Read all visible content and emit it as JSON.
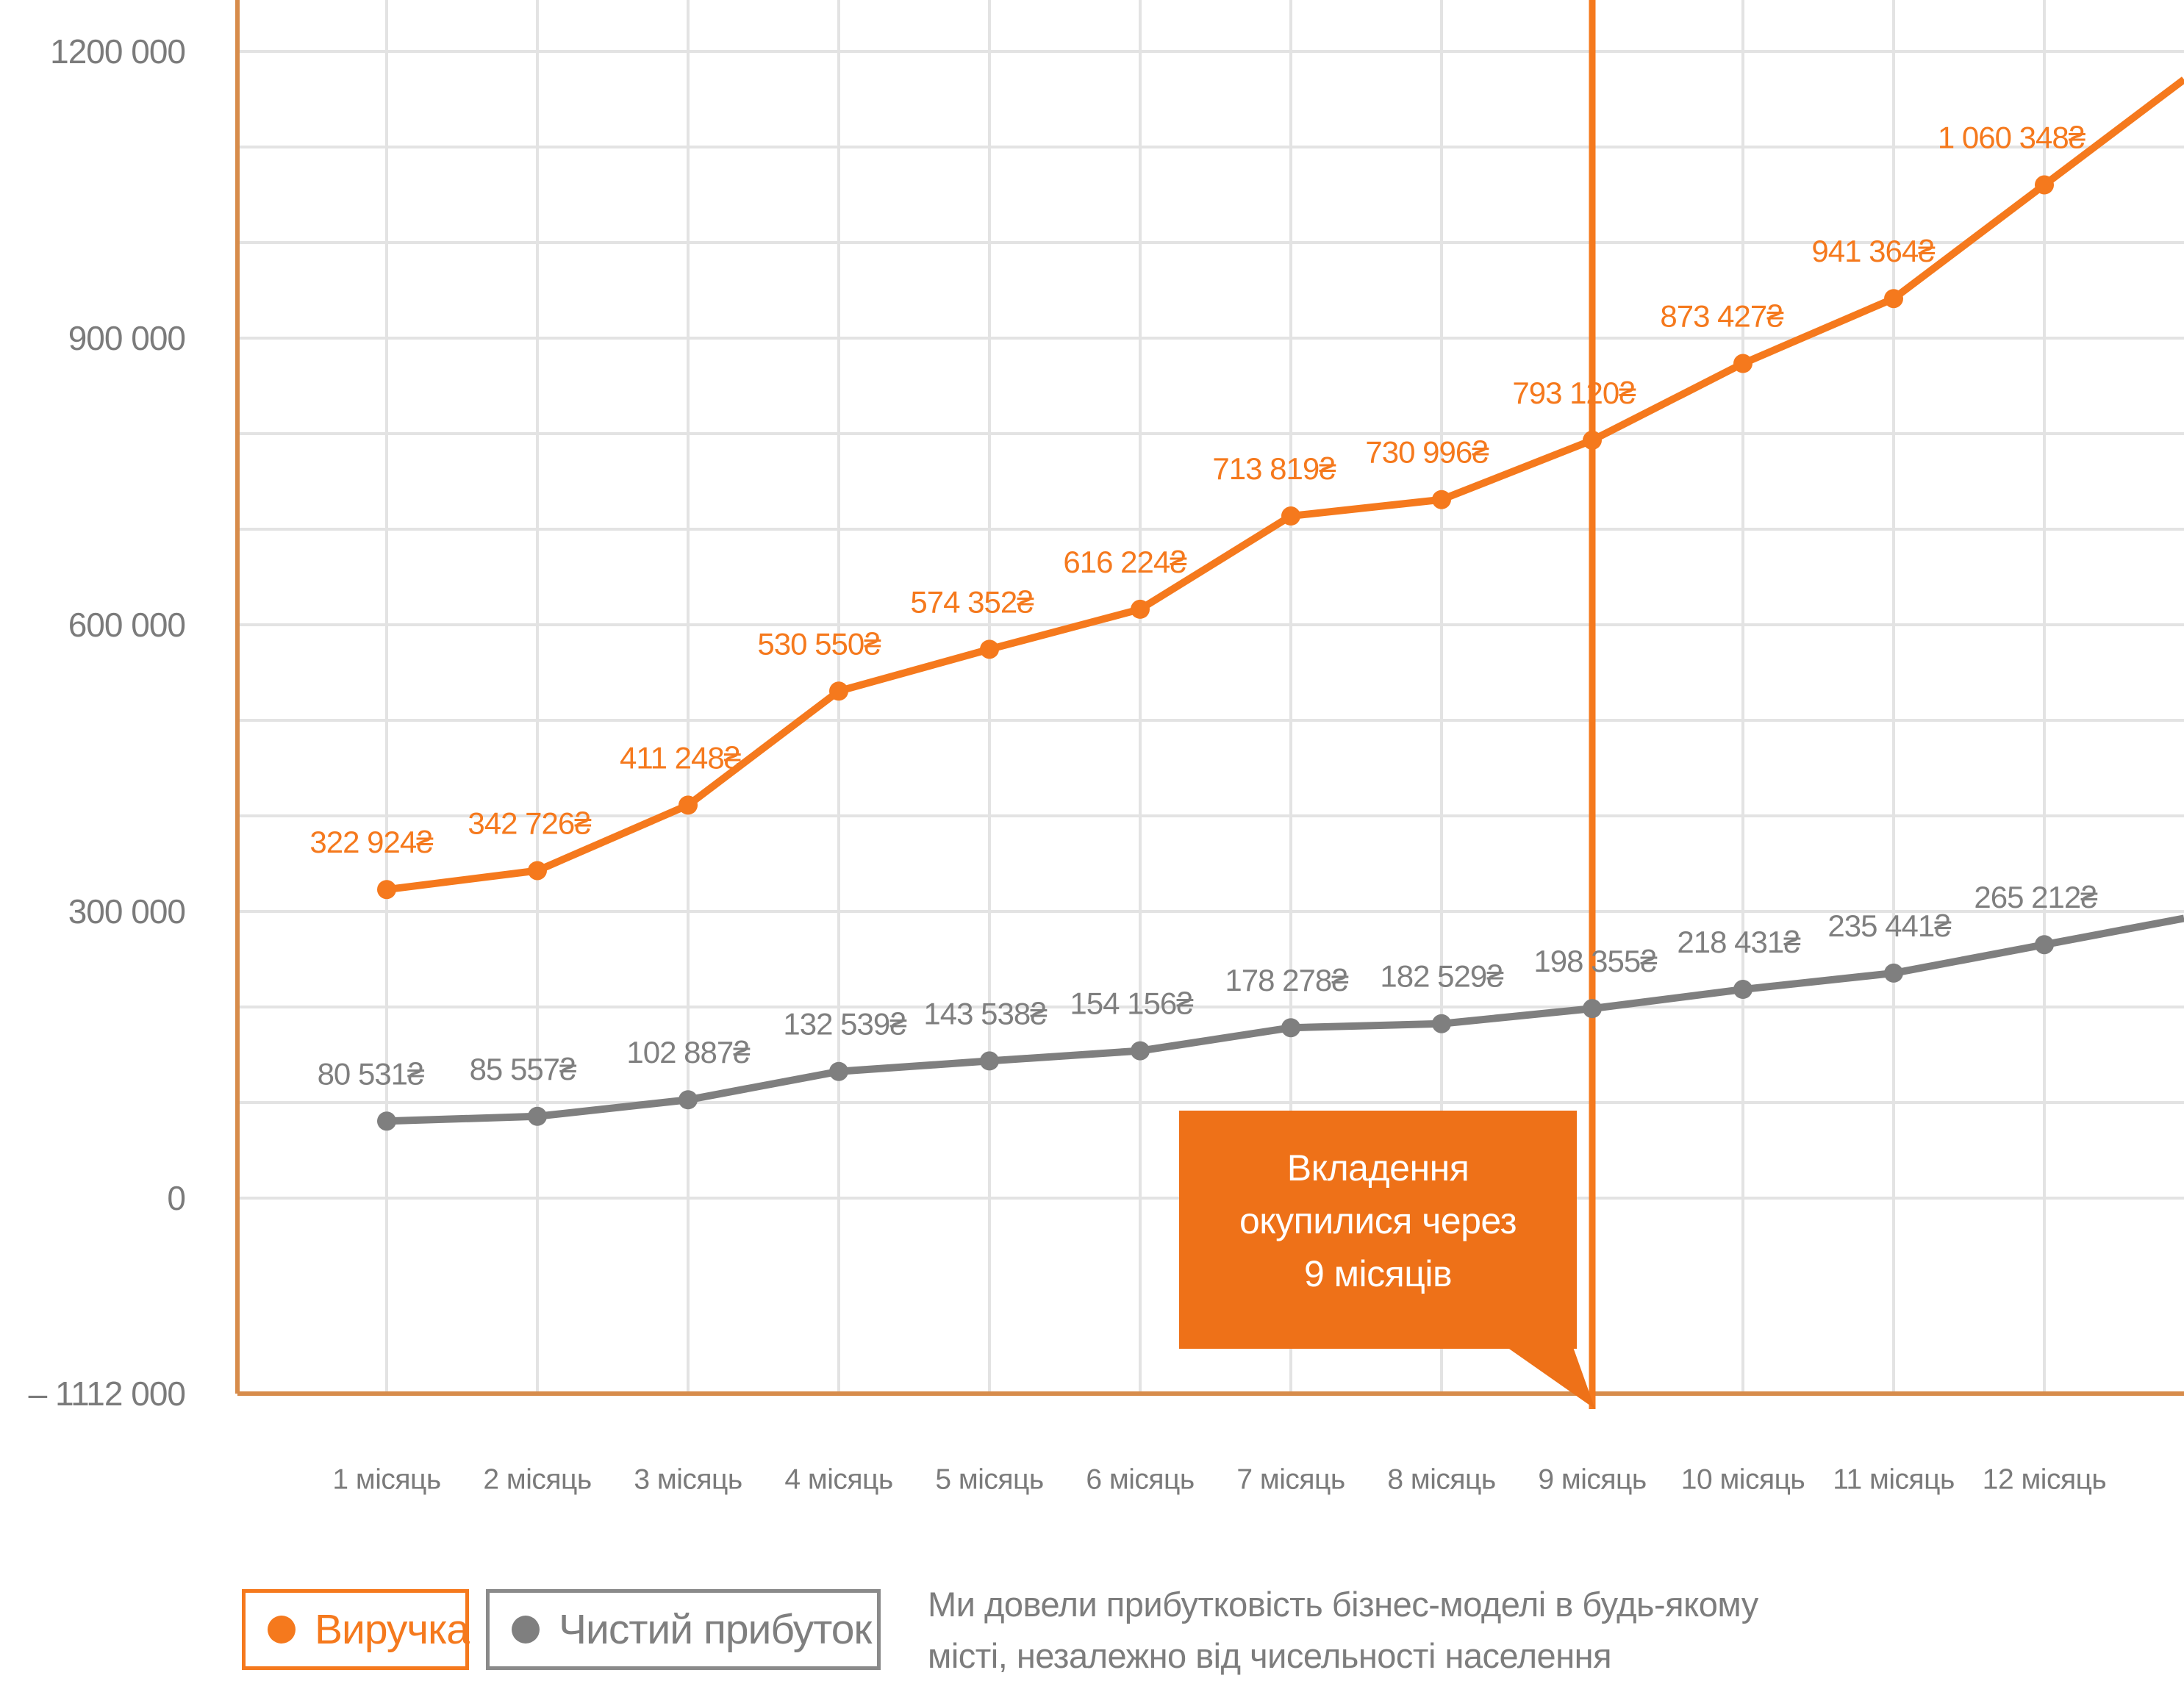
{
  "chart_data": {
    "type": "line",
    "categories": [
      "1 місяць",
      "2 місяць",
      "3 місяць",
      "4 місяць",
      "5 місяць",
      "6 місяць",
      "7 місяць",
      "8 місяць",
      "9 місяць",
      "10 місяць",
      "11 місяць",
      "12 місяць"
    ],
    "series": [
      {
        "name": "Виручка",
        "color": "#f5791d",
        "values": [
          322924,
          342726,
          411248,
          530550,
          574352,
          616224,
          713819,
          730996,
          793120,
          873427,
          941364,
          1060348
        ],
        "labels": [
          "322 924₴",
          "342 726₴",
          "411 248₴",
          "530 550₴",
          "574 352₴",
          "616 224₴",
          "713 819₴",
          "730 996₴",
          "793 120₴",
          "873 427₴",
          "941 364₴",
          "1 060 348₴"
        ]
      },
      {
        "name": "Чистий прибуток",
        "color": "#7f7f7f",
        "values": [
          80531,
          85557,
          102887,
          132539,
          143538,
          154156,
          178278,
          182529,
          198355,
          218431,
          235441,
          265212
        ],
        "labels": [
          "80 531₴",
          "85 557₴",
          "102 887₴",
          "132 539₴",
          "143 538₴",
          "154 156₴",
          "178 278₴",
          "182 529₴",
          "198 355₴",
          "218 431₴",
          "235 441₴",
          "265 212₴"
        ]
      }
    ],
    "y_axis": {
      "ticks": [
        {
          "label": "1200 000",
          "value": 1200000
        },
        {
          "label": "900 000",
          "value": 900000
        },
        {
          "label": "600 000",
          "value": 600000
        },
        {
          "label": "300 000",
          "value": 300000
        },
        {
          "label": "0",
          "value": 0
        },
        {
          "label": "– 1112 000",
          "value": -1112000
        }
      ],
      "gridline_step": 100000,
      "range_top": 1200000,
      "range_bottom_label_value": -1112000
    },
    "grid": true,
    "legend_position": "bottom-left",
    "breakeven_marker": {
      "month_index": 8,
      "category": "9 місяць"
    },
    "callout": {
      "lines": [
        "Вкладення",
        "окупилися через",
        "9 місяців"
      ],
      "bg": "#ee7118",
      "text_color": "#ffffff"
    }
  },
  "legend": {
    "items": [
      {
        "label": "Виручка",
        "color": "#f5791d"
      },
      {
        "label": "Чистий прибуток",
        "color": "#7f7f7f"
      }
    ]
  },
  "footnote": {
    "lines": [
      "Ми довели прибутковість бізнес-моделі в будь-якому",
      "місті, незалежно від чисельності населення"
    ]
  },
  "colors": {
    "axis": "#d78c4b",
    "gridline": "#e3e3e3",
    "tick_text": "#7b7b7b",
    "marker_line": "#f5791d"
  }
}
